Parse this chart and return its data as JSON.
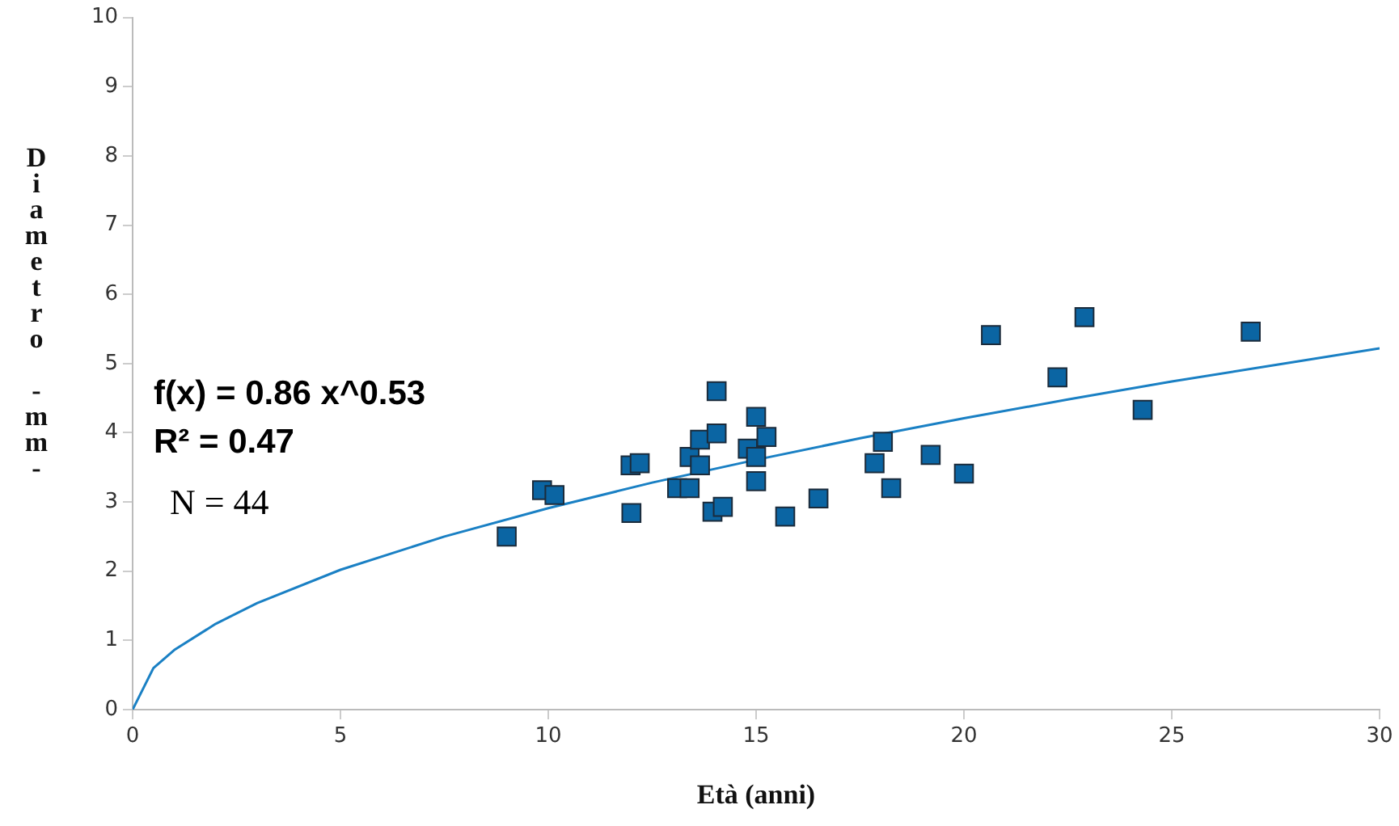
{
  "chart_data": {
    "type": "scatter",
    "xlabel": "Età (anni)",
    "ylabel": "Diametro -mm-",
    "xlim": [
      0,
      30
    ],
    "xticks": [
      0,
      5,
      10,
      15,
      20,
      25,
      30
    ],
    "ylim": [
      0,
      10
    ],
    "yticks": [
      0,
      1,
      2,
      3,
      4,
      5,
      6,
      7,
      8,
      9,
      10
    ],
    "marker": "square",
    "legend": false,
    "annotations": [
      "f(x) = 0.86 x^0.53",
      "R² = 0.47",
      "N = 44"
    ],
    "series": [
      {
        "color": "#0b65a3",
        "x": [
          9.0,
          9.85,
          10.15,
          11.98,
          12.2,
          12.0,
          13.1,
          13.4,
          13.4,
          13.65,
          13.65,
          14.05,
          14.05,
          13.95,
          14.2,
          15.0,
          14.8,
          15.0,
          15.0,
          15.25,
          15.7,
          16.5,
          17.85,
          18.05,
          18.25,
          19.2,
          20.0,
          20.65,
          22.9,
          22.25,
          24.3,
          26.9
        ],
        "values": [
          2.5,
          3.17,
          3.1,
          3.53,
          3.56,
          2.84,
          3.2,
          3.2,
          3.65,
          3.9,
          3.53,
          4.6,
          3.99,
          2.86,
          2.93,
          4.23,
          3.77,
          3.65,
          3.3,
          3.94,
          2.79,
          3.05,
          3.56,
          3.87,
          3.2,
          3.68,
          3.41,
          5.41,
          5.67,
          4.8,
          4.33,
          5.46
        ]
      },
      {
        "type": "line",
        "marker": "none",
        "color": "#1a80c4",
        "x": [
          0,
          0.5,
          1,
          2,
          3,
          5,
          7.5,
          10,
          12.5,
          15,
          17.5,
          20,
          22.5,
          25,
          27.5,
          30
        ],
        "values": [
          0,
          0.6,
          0.86,
          1.24,
          1.54,
          2.02,
          2.5,
          2.91,
          3.28,
          3.61,
          3.92,
          4.21,
          4.48,
          4.74,
          4.98,
          5.22
        ]
      }
    ]
  }
}
